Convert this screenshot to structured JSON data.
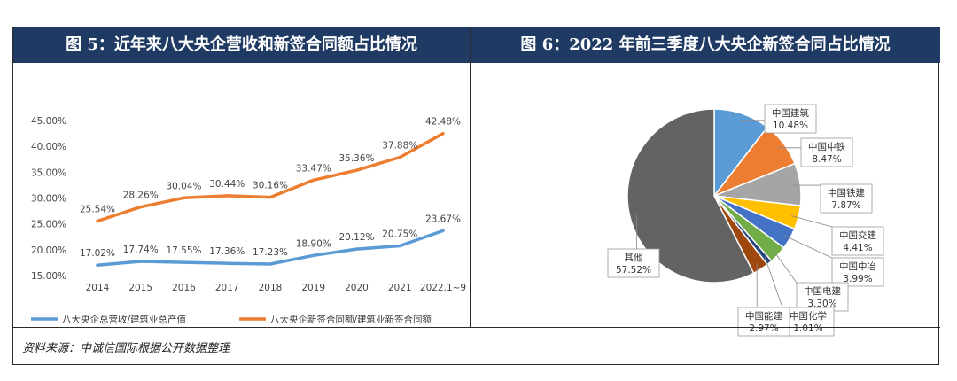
{
  "left": {
    "title": "图 5：近年来八大央企营收和新签合同额占比情况"
  },
  "right": {
    "title": "图 6：2022 年前三季度八大央企新签合同占比情况"
  },
  "source": "资料来源：中诚信国际根据公开数据整理",
  "colors": {
    "title_bg": "#1f3b64",
    "series1": "#5b9bd5",
    "series2": "#ed7d31"
  },
  "chart_data": [
    {
      "type": "line",
      "categories": [
        "2014",
        "2015",
        "2016",
        "2017",
        "2018",
        "2019",
        "2020",
        "2021",
        "2022.1~9"
      ],
      "y_ticks": [
        "15.00%",
        "20.00%",
        "25.00%",
        "30.00%",
        "35.00%",
        "40.00%",
        "45.00%"
      ],
      "ylim": [
        15,
        45
      ],
      "grid": false,
      "legend_position": "bottom",
      "series": [
        {
          "name": "八大央企总营收/建筑业总产值",
          "color": "#5b9bd5",
          "values": [
            17.02,
            17.74,
            17.55,
            17.36,
            17.23,
            18.9,
            20.12,
            20.75,
            23.67
          ],
          "labels": [
            "17.02%",
            "17.74%",
            "17.55%",
            "17.36%",
            "17.23%",
            "18.90%",
            "20.12%",
            "20.75%",
            "23.67%"
          ]
        },
        {
          "name": "八大央企新签合同额/建筑业新签合同额",
          "color": "#ed7d31",
          "values": [
            25.54,
            28.26,
            30.04,
            30.44,
            30.16,
            33.47,
            35.36,
            37.88,
            42.48
          ],
          "labels": [
            "25.54%",
            "28.26%",
            "30.04%",
            "30.44%",
            "30.16%",
            "33.47%",
            "35.36%",
            "37.88%",
            "42.48%"
          ]
        }
      ]
    },
    {
      "type": "pie",
      "slices": [
        {
          "name": "中国建筑",
          "value": 10.48,
          "label": "10.48%",
          "color": "#5b9bd5"
        },
        {
          "name": "中国中铁",
          "value": 8.47,
          "label": "8.47%",
          "color": "#ed7d31"
        },
        {
          "name": "中国铁建",
          "value": 7.87,
          "label": "7.87%",
          "color": "#a5a5a5"
        },
        {
          "name": "中国交建",
          "value": 4.41,
          "label": "4.41%",
          "color": "#ffc000"
        },
        {
          "name": "中国中冶",
          "value": 3.99,
          "label": "3.99%",
          "color": "#4472c4"
        },
        {
          "name": "中国电建",
          "value": 3.3,
          "label": "3.30%",
          "color": "#70ad47"
        },
        {
          "name": "中国化学",
          "value": 1.01,
          "label": "1.01%",
          "color": "#264478"
        },
        {
          "name": "中国能建",
          "value": 2.97,
          "label": "2.97%",
          "color": "#9e480e"
        },
        {
          "name": "其他",
          "value": 57.52,
          "label": "57.52%",
          "color": "#636363"
        }
      ]
    }
  ]
}
